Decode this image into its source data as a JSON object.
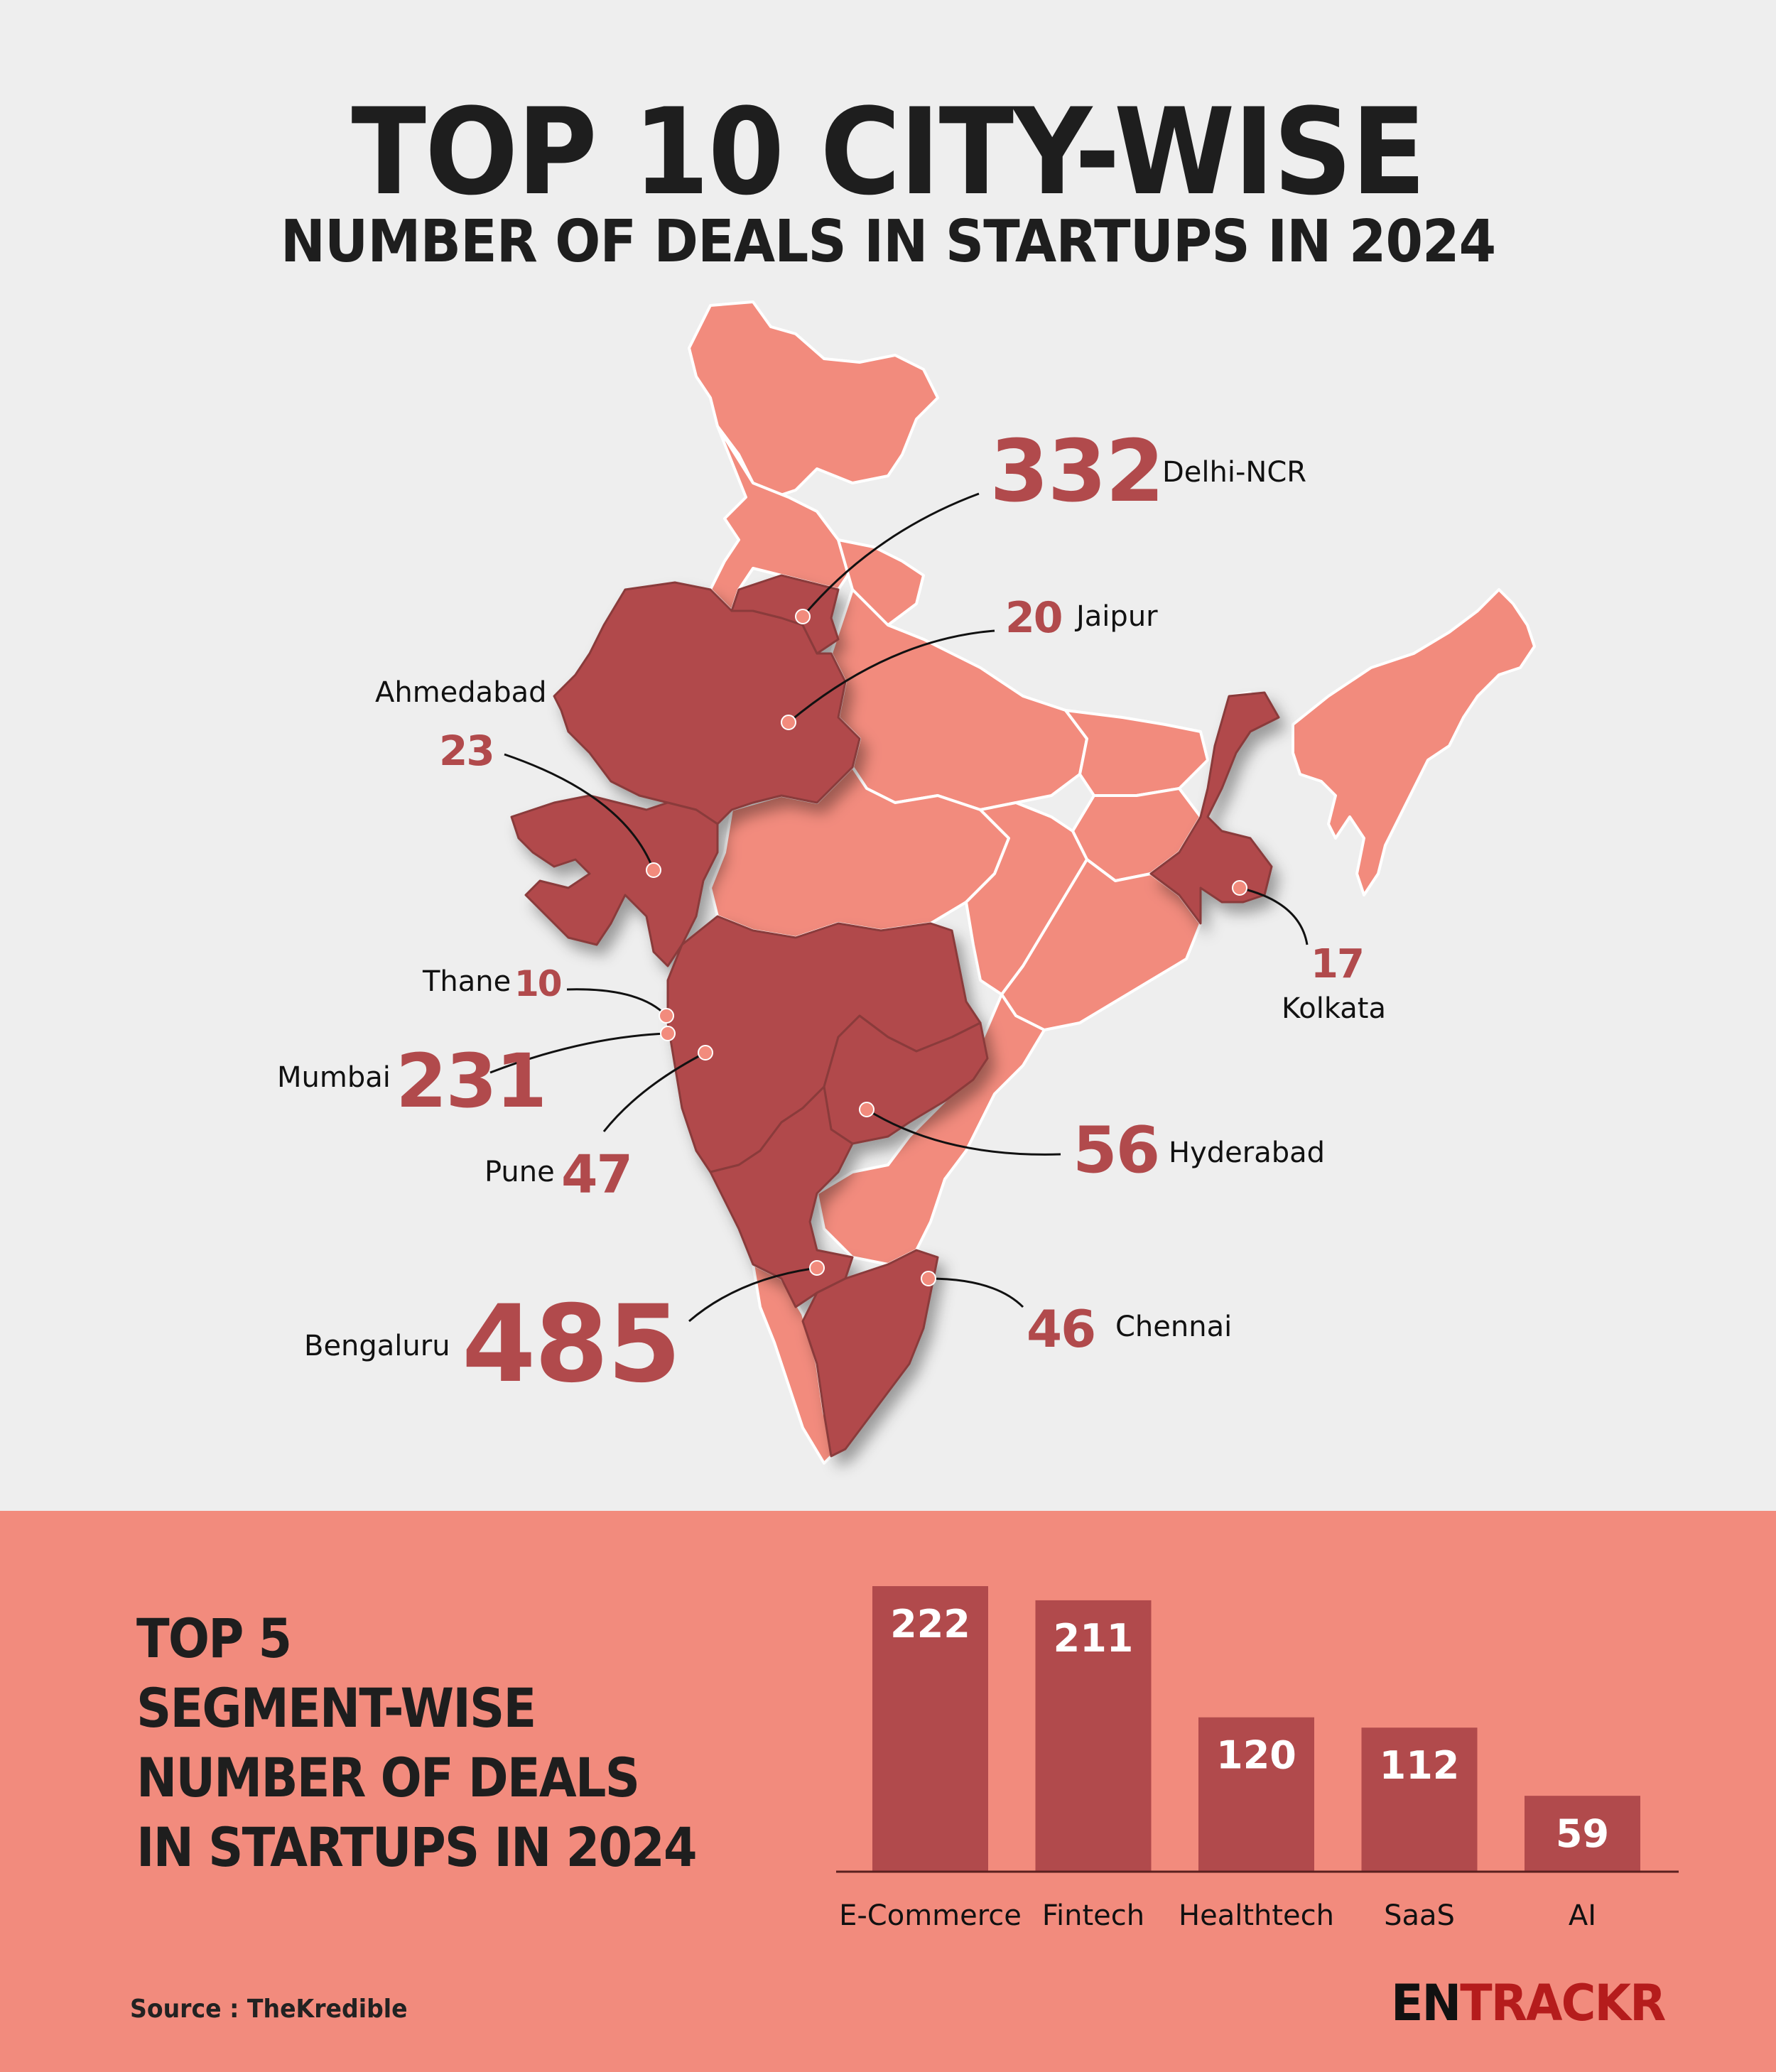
{
  "header": {
    "title": "TOP 10 CITY-WISE",
    "subtitle": "NUMBER OF DEALS IN STARTUPS IN 2024"
  },
  "colors": {
    "background": "#eeeeee",
    "highlight_state": "#b14a4c",
    "base_state": "#f28b7d",
    "number_text": "#b14a4c",
    "panel_background": "#f28b7d",
    "bar": "#b14a4c",
    "logo_red": "#b51c1c"
  },
  "cities": [
    {
      "name": "Bengaluru",
      "deals": 485
    },
    {
      "name": "Delhi-NCR",
      "deals": 332
    },
    {
      "name": "Mumbai",
      "deals": 231
    },
    {
      "name": "Hyderabad",
      "deals": 56
    },
    {
      "name": "Pune",
      "deals": 47
    },
    {
      "name": "Chennai",
      "deals": 46
    },
    {
      "name": "Ahmedabad",
      "deals": 23
    },
    {
      "name": "Jaipur",
      "deals": 20
    },
    {
      "name": "Kolkata",
      "deals": 17
    },
    {
      "name": "Thane",
      "deals": 10
    }
  ],
  "labels": {
    "bengaluru": {
      "name": "Bengaluru",
      "value": "485"
    },
    "delhi": {
      "name": "Delhi-NCR",
      "value": "332"
    },
    "mumbai": {
      "name": "Mumbai",
      "value": "231"
    },
    "hyderabad": {
      "name": "Hyderabad",
      "value": "56"
    },
    "pune": {
      "name": "Pune",
      "value": "47"
    },
    "chennai": {
      "name": "Chennai",
      "value": "46"
    },
    "ahmedabad": {
      "name": "Ahmedabad",
      "value": "23"
    },
    "jaipur": {
      "name": "Jaipur",
      "value": "20"
    },
    "kolkata": {
      "name": "Kolkata",
      "value": "17"
    },
    "thane": {
      "name": "Thane",
      "value": "10"
    }
  },
  "segment_panel": {
    "title_lines": [
      "TOP 5",
      "SEGMENT-WISE",
      "NUMBER OF DEALS",
      "IN STARTUPS IN 2024"
    ]
  },
  "chart_data": [
    {
      "type": "bar",
      "title": "TOP 5 SEGMENT-WISE NUMBER OF DEALS IN STARTUPS IN 2024",
      "categories": [
        "E-Commerce",
        "Fintech",
        "Healthtech",
        "SaaS",
        "AI"
      ],
      "values": [
        222,
        211,
        120,
        112,
        59
      ],
      "xlabel": "",
      "ylabel": "",
      "ylim": [
        0,
        222
      ],
      "grid": false,
      "data_labels": true,
      "legend": "none"
    },
    {
      "type": "map",
      "title": "TOP 10 CITY-WISE NUMBER OF DEALS IN STARTUPS IN 2024",
      "categories": [
        "Bengaluru",
        "Delhi-NCR",
        "Mumbai",
        "Hyderabad",
        "Pune",
        "Chennai",
        "Ahmedabad",
        "Jaipur",
        "Kolkata",
        "Thane"
      ],
      "values": [
        485,
        332,
        231,
        56,
        47,
        46,
        23,
        20,
        17,
        10
      ],
      "highlighted_states": [
        "Rajasthan",
        "Delhi/Haryana",
        "Gujarat",
        "Maharashtra",
        "Telangana",
        "Karnataka",
        "Tamil Nadu",
        "West Bengal"
      ]
    }
  ],
  "footer": {
    "source": "Source : TheKredible",
    "logo_part1": "EN",
    "logo_part2": "TRACKR"
  }
}
